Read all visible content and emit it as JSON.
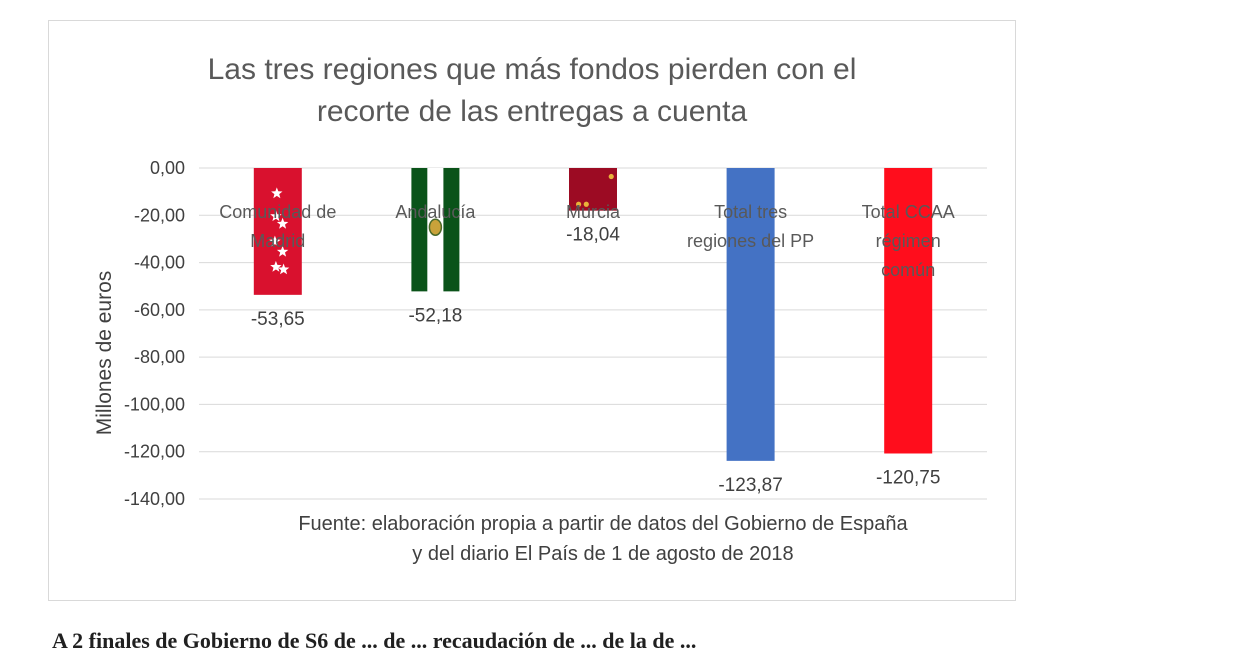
{
  "chart_data": {
    "type": "bar",
    "title": [
      "Las tres regiones que más fondos pierden con el",
      "recorte de las entregas a cuenta"
    ],
    "ylabel": "Millones de euros",
    "xlabel": "",
    "ylim": [
      -140,
      0
    ],
    "yticks": [
      0,
      -20,
      -40,
      -60,
      -80,
      -100,
      -120,
      -140
    ],
    "ytick_labels": [
      "0,00",
      "-20,00",
      "-40,00",
      "-60,00",
      "-80,00",
      "-100,00",
      "-120,00",
      "-140,00"
    ],
    "grid": true,
    "categories": [
      [
        "Comunidad de",
        "Madrid"
      ],
      [
        "Andalucía"
      ],
      [
        "Murcia"
      ],
      [
        "Total tres",
        "regiones del PP"
      ],
      [
        "Total CCAA",
        "régimen",
        "común"
      ]
    ],
    "values": [
      -53.65,
      -52.18,
      -18.04,
      -123.87,
      -120.75
    ],
    "data_labels": [
      "-53,65",
      "-52,18",
      "-18,04",
      "-123,87",
      "-120,75"
    ],
    "bar_fills": [
      "madrid-flag",
      "andalucia-flag",
      "murcia-flag",
      "#4472c4",
      "#ff0d1c"
    ],
    "source": [
      "Fuente: elaboración propia a partir de datos del Gobierno de España",
      "y del diario El País de 1 de agosto de 2018"
    ]
  },
  "colors": {
    "madrid": "#d9112e",
    "andalucia_green": "#0a5319",
    "murcia": "#9c0b23",
    "total_pp": "#4472c4",
    "total_ccaa": "#ff0d1c",
    "grid": "#d9d9d9"
  },
  "page_text": {
    "bottom_fragment": "A 2 finales de Gobierno de S6 de ... de ... recaudación de ... de la de ..."
  }
}
